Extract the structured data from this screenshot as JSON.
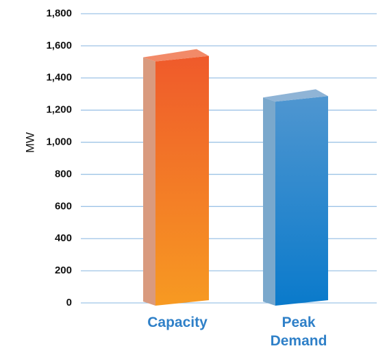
{
  "chart_data": {
    "type": "bar",
    "title": "",
    "xlabel": "",
    "ylabel": "MW",
    "categories": [
      [
        "Capacity"
      ],
      [
        "Peak",
        "Demand"
      ]
    ],
    "values": [
      1520,
      1270
    ],
    "ylim": [
      0,
      1800
    ],
    "yticks": [
      "0",
      "200",
      "400",
      "600",
      "800",
      "1,000",
      "1,200",
      "1,400",
      "1,600",
      "1,800"
    ],
    "grid": true,
    "legend": "none",
    "colors": {
      "grid": "#9dc3e6",
      "category_label": "#2f80c8",
      "bars": [
        {
          "front_top": "#ef5a2b",
          "front_bottom": "#f79a22",
          "side": "#d99a7e",
          "top": "#f28a68"
        },
        {
          "front_top": "#4f96d0",
          "front_bottom": "#0a7acb",
          "side": "#7aa8cc",
          "top": "#8fb4d6"
        }
      ]
    }
  }
}
